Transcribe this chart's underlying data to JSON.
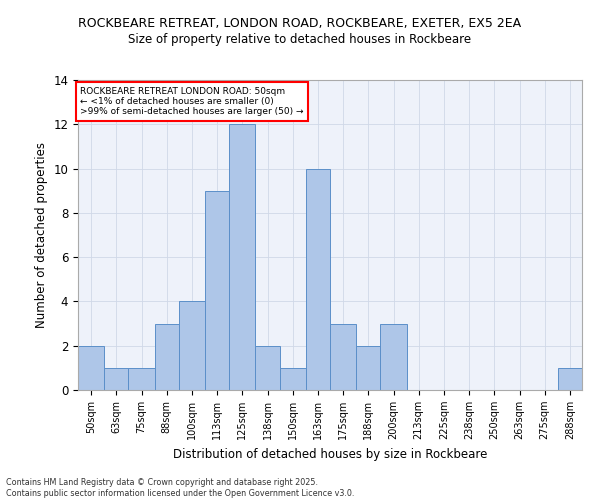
{
  "title_line1": "ROCKBEARE RETREAT, LONDON ROAD, ROCKBEARE, EXETER, EX5 2EA",
  "title_line2": "Size of property relative to detached houses in Rockbeare",
  "xlabel": "Distribution of detached houses by size in Rockbeare",
  "ylabel": "Number of detached properties",
  "bins": [
    50,
    63,
    75,
    88,
    100,
    113,
    125,
    138,
    150,
    163,
    175,
    188,
    200,
    213,
    225,
    238,
    250,
    263,
    275,
    288,
    300
  ],
  "values": [
    2,
    1,
    1,
    3,
    4,
    9,
    12,
    2,
    1,
    10,
    3,
    2,
    3,
    0,
    0,
    0,
    0,
    0,
    0,
    1
  ],
  "bar_color": "#aec6e8",
  "bar_edge_color": "#5b8fc9",
  "ylim": [
    0,
    14
  ],
  "yticks": [
    0,
    2,
    4,
    6,
    8,
    10,
    12,
    14
  ],
  "grid_color": "#d0d8e8",
  "bg_color": "#eef2fa",
  "annotation_title": "ROCKBEARE RETREAT LONDON ROAD: 50sqm",
  "annotation_line2": "← <1% of detached houses are smaller (0)",
  "annotation_line3": ">99% of semi-detached houses are larger (50) →",
  "footer_line1": "Contains HM Land Registry data © Crown copyright and database right 2025.",
  "footer_line2": "Contains public sector information licensed under the Open Government Licence v3.0."
}
